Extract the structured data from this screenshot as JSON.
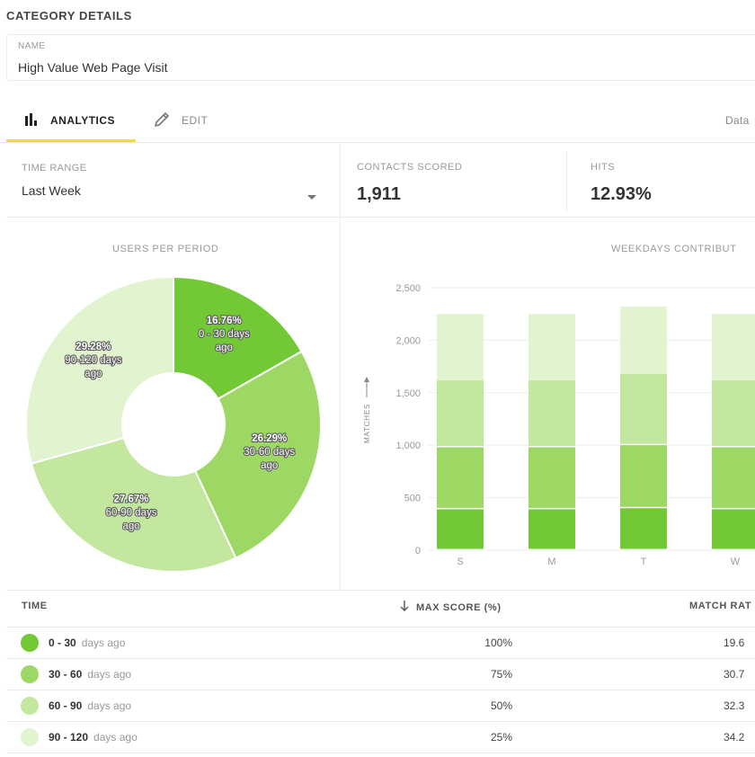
{
  "page": {
    "section_title": "CATEGORY DETAILS"
  },
  "name_field": {
    "label": "NAME",
    "value": "High Value Web Page Visit"
  },
  "tabs": {
    "analytics": "ANALYTICS",
    "edit": "EDIT",
    "data": "Data"
  },
  "time_range": {
    "label": "TIME RANGE",
    "value": "Last Week"
  },
  "stats": {
    "contacts_label": "CONTACTS SCORED",
    "contacts_value": "1,911",
    "hits_label": "HITS",
    "hits_value": "12.93%"
  },
  "colors": {
    "c1": "#73c935",
    "c2": "#9dd865",
    "c3": "#c3e79e",
    "c4": "#e2f3d0",
    "accent": "#f5dc34"
  },
  "chart_data": [
    {
      "type": "pie",
      "title": "USERS PER PERIOD",
      "slices": [
        {
          "percent": "16.76%",
          "label": "0 - 30 days",
          "label2": "ago",
          "value": 16.76
        },
        {
          "percent": "26.29%",
          "label": "30-60 days",
          "label2": "ago",
          "value": 26.29
        },
        {
          "percent": "27.67%",
          "label": "60-90 days",
          "label2": "ago",
          "value": 27.67
        },
        {
          "percent": "29.28%",
          "label": "90-120 days",
          "label2": "ago",
          "value": 29.28
        }
      ]
    },
    {
      "type": "bar",
      "title": "WEEKDAYS CONTRIBUT",
      "ylabel": "MATCHES",
      "ylim": [
        0,
        2500
      ],
      "yticks": [
        "0",
        "500",
        "1,000",
        "1,500",
        "2,000",
        "2,500"
      ],
      "categories": [
        "S",
        "M",
        "T",
        "W"
      ],
      "series": [
        {
          "name": "0 - 30",
          "values": [
            390,
            390,
            400,
            390
          ]
        },
        {
          "name": "30 - 60",
          "values": [
            590,
            590,
            600,
            590
          ]
        },
        {
          "name": "60 - 90",
          "values": [
            640,
            640,
            680,
            640
          ]
        },
        {
          "name": "90 - 120",
          "values": [
            630,
            630,
            640,
            630
          ]
        }
      ]
    }
  ],
  "table": {
    "headers": {
      "time": "TIME",
      "max_score": "MAX SCORE (%)",
      "match_rate": "MATCH RAT"
    },
    "rows": [
      {
        "range": "0 - 30",
        "suffix": "days ago",
        "max_score": "100%",
        "match_rate": "19.6"
      },
      {
        "range": "30 - 60",
        "suffix": "days ago",
        "max_score": "75%",
        "match_rate": "30.7"
      },
      {
        "range": "60 - 90",
        "suffix": "days ago",
        "max_score": "50%",
        "match_rate": "32.3"
      },
      {
        "range": "90 - 120",
        "suffix": "days ago",
        "max_score": "25%",
        "match_rate": "34.2"
      }
    ]
  }
}
